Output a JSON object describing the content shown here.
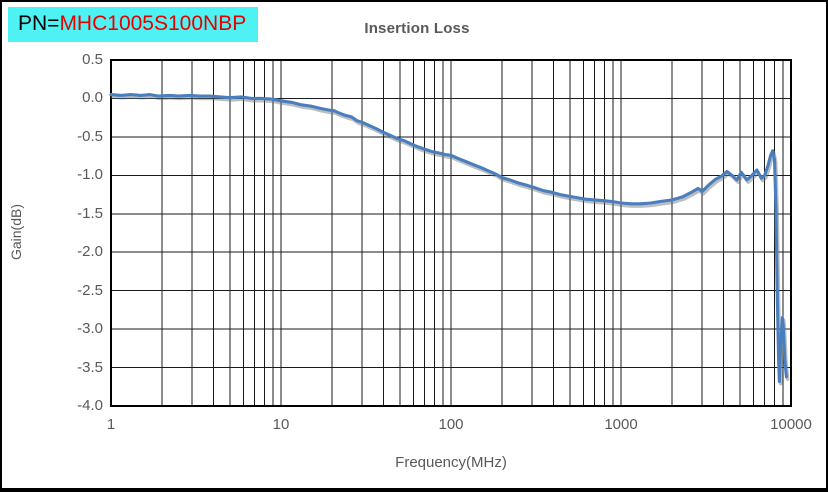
{
  "header": {
    "pn_prefix": "PN=",
    "pn_value": "MHC1005S100NBP",
    "pn_box_bg": "#4ff2f2",
    "pn_value_color": "#e80000"
  },
  "chart_data": {
    "type": "line",
    "title": "Insertion Loss",
    "xlabel": "Frequency(MHz)",
    "ylabel": "Gain(dB)",
    "x_scale": "log",
    "xlim": [
      1,
      10000
    ],
    "ylim": [
      -4.0,
      0.5
    ],
    "x_ticks": [
      1,
      10,
      100,
      1000,
      10000
    ],
    "x_tick_labels": [
      "1",
      "10",
      "100",
      "1000",
      "10000"
    ],
    "y_ticks": [
      0.5,
      0.0,
      -0.5,
      -1.0,
      -1.5,
      -2.0,
      -2.5,
      -3.0,
      -3.5,
      -4.0
    ],
    "y_tick_labels": [
      "0.5",
      "0.0",
      "-0.5",
      "-1.0",
      "-1.5",
      "-2.0",
      "-2.5",
      "-3.0",
      "-3.5",
      "-4.0"
    ],
    "grid": "major and minor log gridlines, black",
    "legend": "none",
    "grid_color": "#1a1a1a",
    "series": [
      {
        "name": "Insertion Loss",
        "color": "#4a7ebd",
        "points": [
          [
            1,
            0.05
          ],
          [
            1.15,
            0.04
          ],
          [
            1.3,
            0.05
          ],
          [
            1.5,
            0.04
          ],
          [
            1.7,
            0.05
          ],
          [
            1.9,
            0.03
          ],
          [
            2.2,
            0.04
          ],
          [
            2.5,
            0.03
          ],
          [
            2.9,
            0.04
          ],
          [
            3.3,
            0.03
          ],
          [
            3.8,
            0.03
          ],
          [
            4.4,
            0.02
          ],
          [
            5,
            0.01
          ],
          [
            5.8,
            0.02
          ],
          [
            6.7,
            0
          ],
          [
            7.7,
            0
          ],
          [
            8.9,
            -0.01
          ],
          [
            10,
            -0.03
          ],
          [
            11.5,
            -0.05
          ],
          [
            13,
            -0.08
          ],
          [
            15,
            -0.1
          ],
          [
            17,
            -0.13
          ],
          [
            19,
            -0.15
          ],
          [
            20.5,
            -0.16
          ],
          [
            22,
            -0.19
          ],
          [
            24,
            -0.22
          ],
          [
            26,
            -0.24
          ],
          [
            28,
            -0.29
          ],
          [
            30,
            -0.31
          ],
          [
            33,
            -0.35
          ],
          [
            36,
            -0.39
          ],
          [
            40,
            -0.44
          ],
          [
            44,
            -0.48
          ],
          [
            48,
            -0.52
          ],
          [
            53,
            -0.55
          ],
          [
            58,
            -0.59
          ],
          [
            64,
            -0.63
          ],
          [
            70,
            -0.66
          ],
          [
            77,
            -0.69
          ],
          [
            85,
            -0.71
          ],
          [
            93,
            -0.73
          ],
          [
            100,
            -0.74
          ],
          [
            110,
            -0.78
          ],
          [
            122,
            -0.82
          ],
          [
            135,
            -0.86
          ],
          [
            150,
            -0.9
          ],
          [
            165,
            -0.94
          ],
          [
            182,
            -0.98
          ],
          [
            200,
            -1.03
          ],
          [
            222,
            -1.06
          ],
          [
            250,
            -1.1
          ],
          [
            280,
            -1.13
          ],
          [
            310,
            -1.16
          ],
          [
            350,
            -1.2
          ],
          [
            390,
            -1.22
          ],
          [
            440,
            -1.25
          ],
          [
            490,
            -1.27
          ],
          [
            550,
            -1.29
          ],
          [
            620,
            -1.31
          ],
          [
            700,
            -1.32
          ],
          [
            790,
            -1.33
          ],
          [
            890,
            -1.34
          ],
          [
            1000,
            -1.36
          ],
          [
            1150,
            -1.37
          ],
          [
            1300,
            -1.37
          ],
          [
            1500,
            -1.36
          ],
          [
            1700,
            -1.34
          ],
          [
            2000,
            -1.32
          ],
          [
            2300,
            -1.28
          ],
          [
            2600,
            -1.22
          ],
          [
            2850,
            -1.17
          ],
          [
            3000,
            -1.21
          ],
          [
            3300,
            -1.12
          ],
          [
            3600,
            -1.05
          ],
          [
            3900,
            -1.01
          ],
          [
            4200,
            -0.95
          ],
          [
            4500,
            -1
          ],
          [
            4800,
            -1.06
          ],
          [
            5100,
            -0.96
          ],
          [
            5500,
            -1.06
          ],
          [
            5900,
            -1
          ],
          [
            6300,
            -0.93
          ],
          [
            6700,
            -1.04
          ],
          [
            7000,
            -1
          ],
          [
            7300,
            -0.88
          ],
          [
            7600,
            -0.74
          ],
          [
            7800,
            -0.68
          ],
          [
            8000,
            -0.8
          ],
          [
            8150,
            -1.4
          ],
          [
            8300,
            -2.5
          ],
          [
            8450,
            -3.4
          ],
          [
            8550,
            -3.68
          ],
          [
            8700,
            -3.2
          ],
          [
            8900,
            -2.85
          ],
          [
            9000,
            -2.95
          ],
          [
            9200,
            -3.4
          ],
          [
            9400,
            -3.62
          ]
        ]
      }
    ]
  }
}
